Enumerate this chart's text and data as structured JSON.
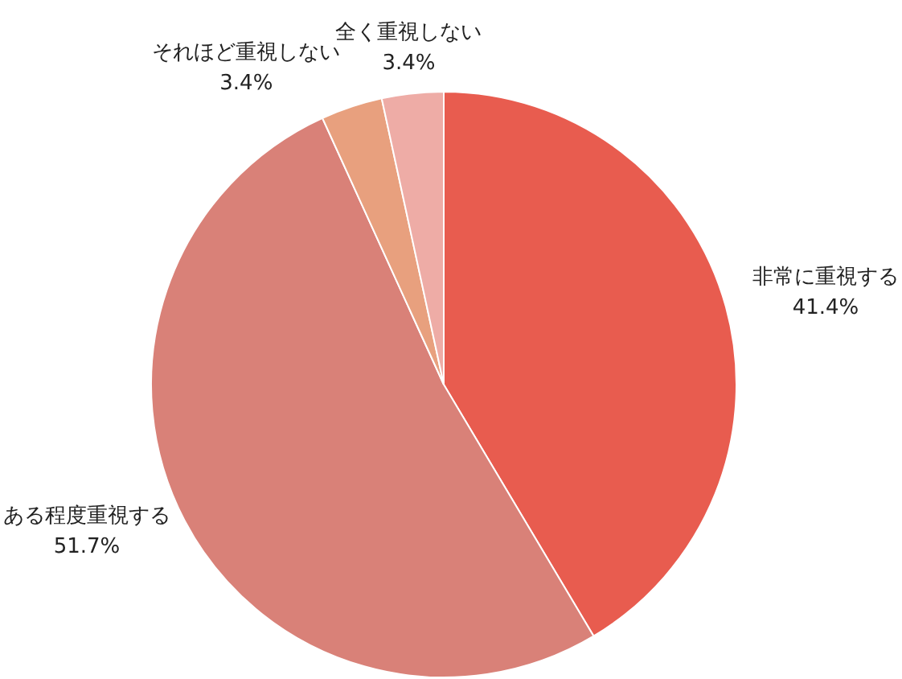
{
  "chart_data": {
    "type": "pie",
    "categories": [
      "非常に重視する",
      "ある程度重視する",
      "それほど重視しない",
      "全く重視しない"
    ],
    "values": [
      41.4,
      51.7,
      3.4,
      3.4
    ],
    "colors": [
      "#e85c4f",
      "#d98178",
      "#e8a07e",
      "#eeaca6"
    ],
    "value_labels": [
      "41.4%",
      "51.7%",
      "3.4%",
      "3.4%"
    ]
  }
}
